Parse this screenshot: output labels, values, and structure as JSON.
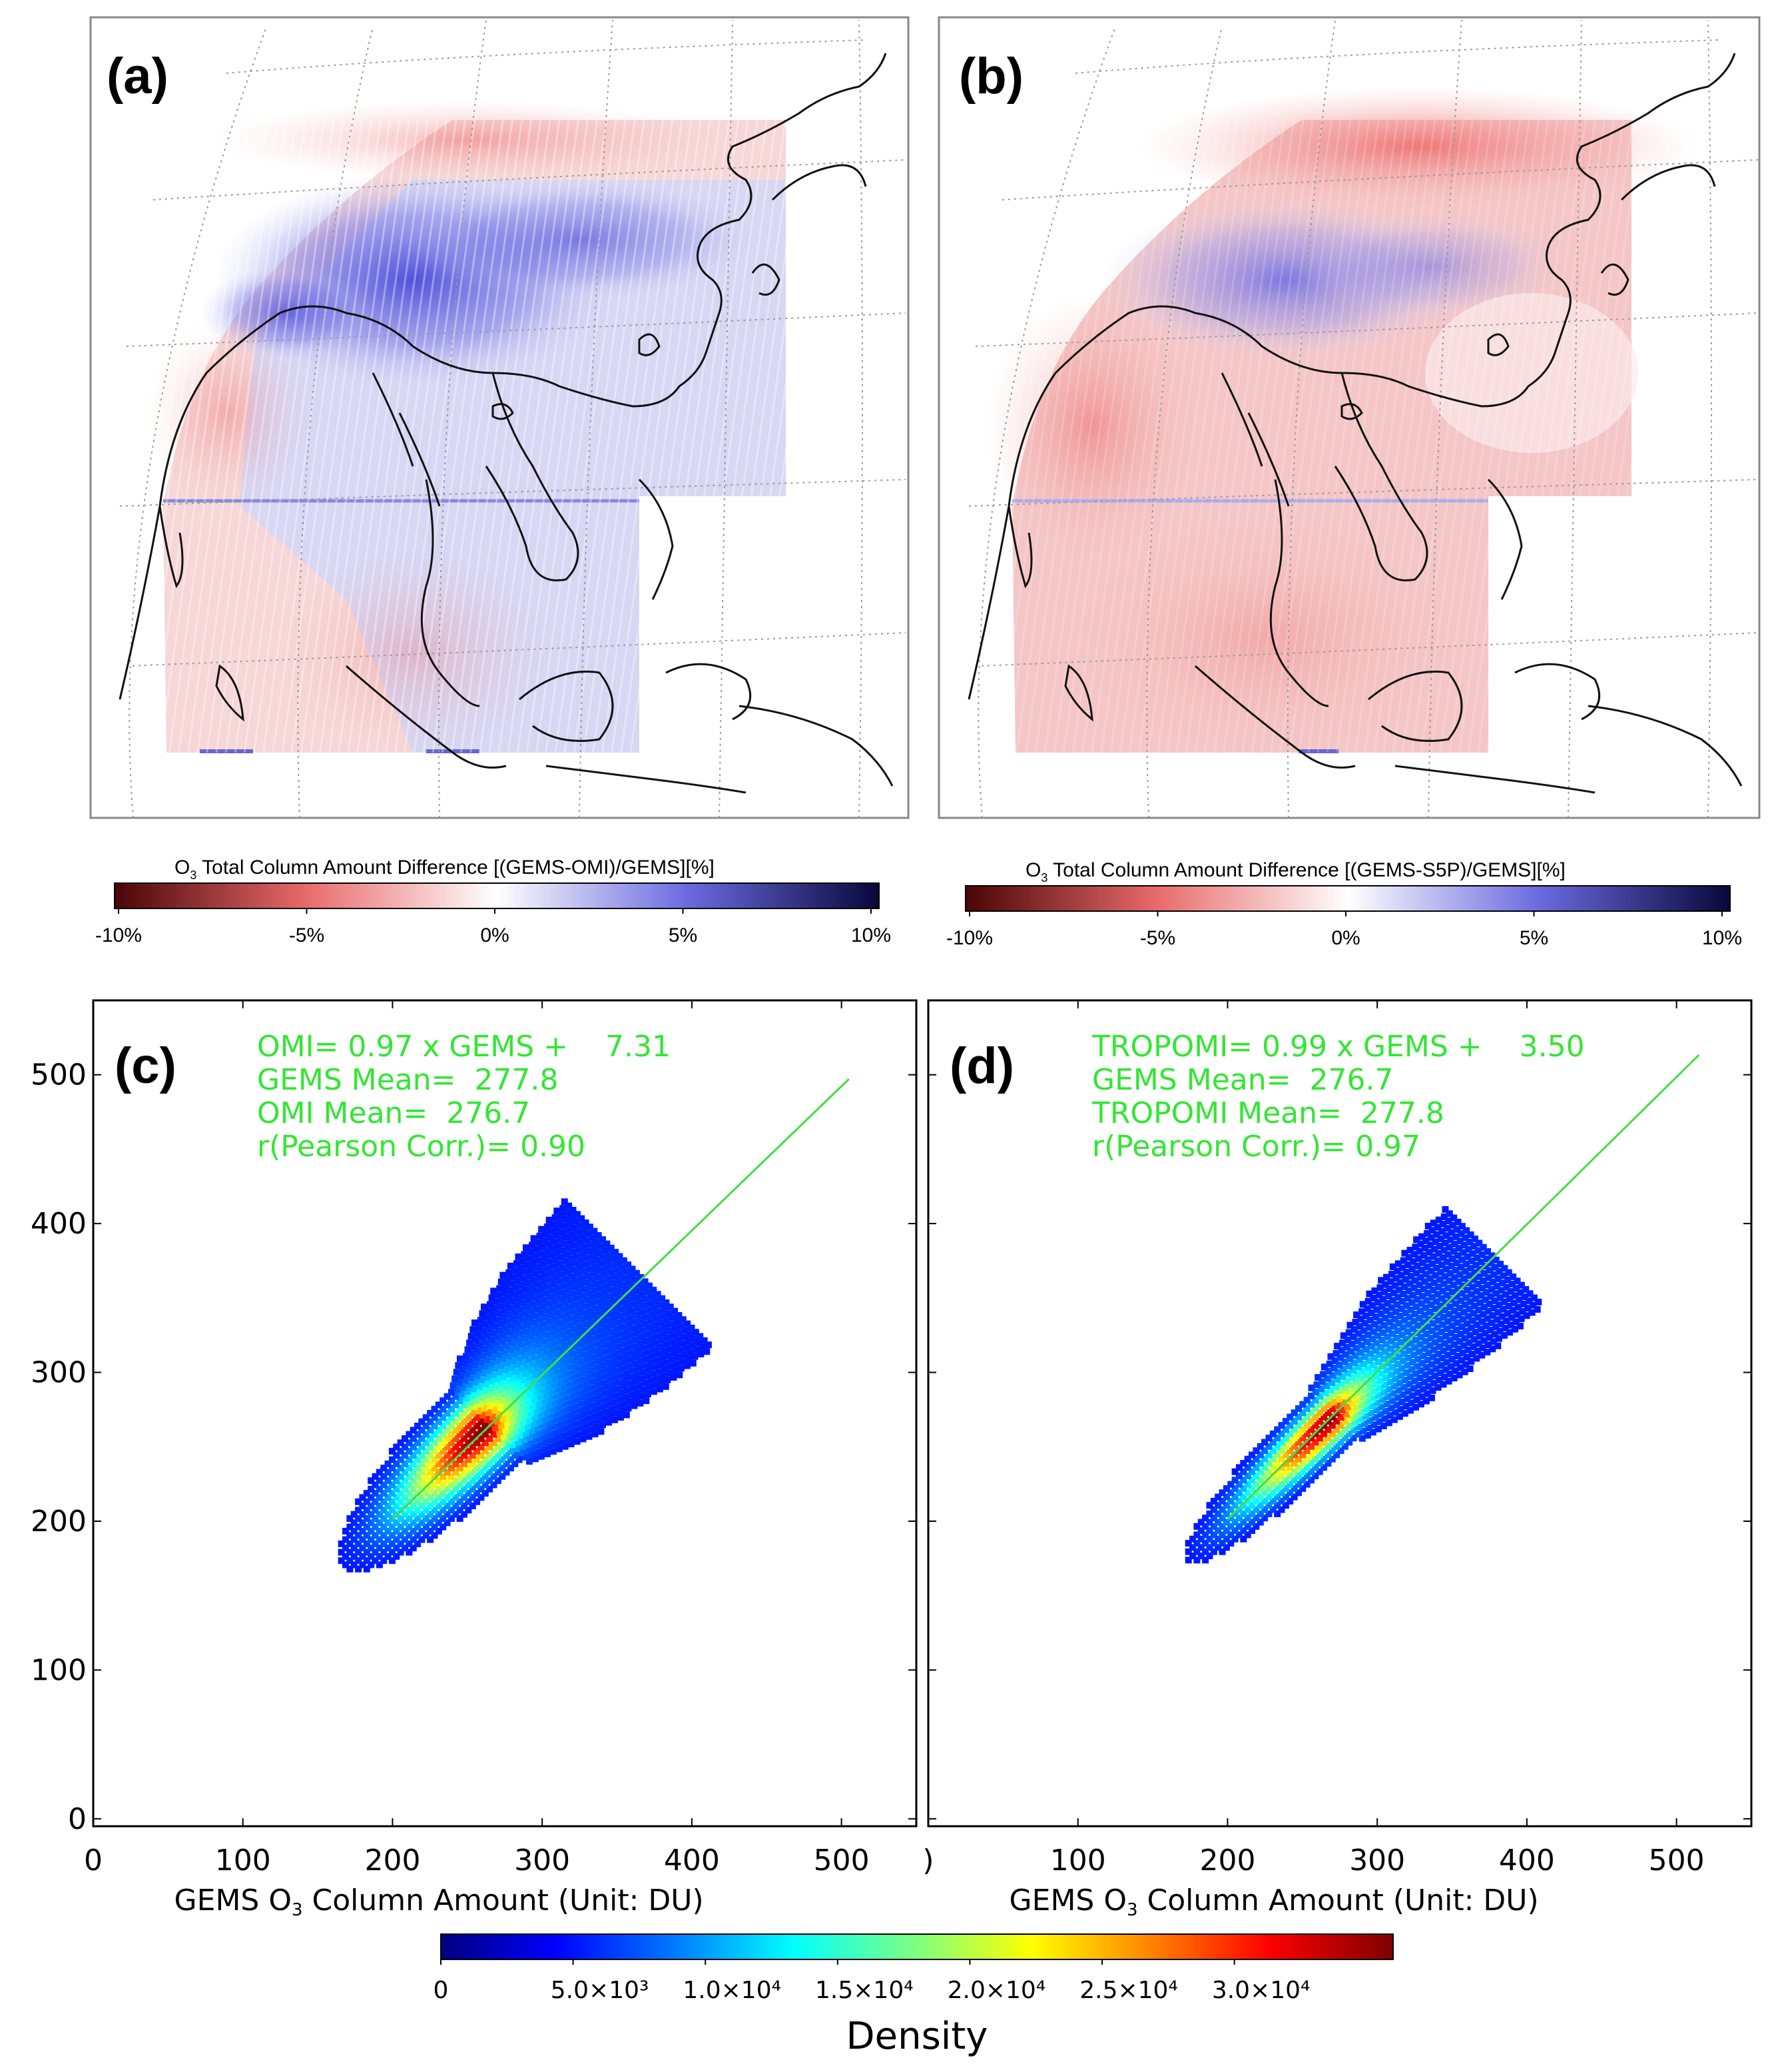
{
  "colors": {
    "map_bg": "#ffffff",
    "coast": "#111111",
    "annot": "#33e633",
    "fit_line": "#44dd44",
    "neg_dark": "#5a0c0c",
    "neg_mid": "#e86a6a",
    "neutral": "#ffffff",
    "pos_mid": "#6a6ae0",
    "pos_dark": "#0c0c40"
  },
  "maps": [
    {
      "label": "(a)",
      "colorbar_title_prefix": "O",
      "colorbar_title_sub": "3",
      "colorbar_title_rest": " Total Column Amount Difference [(GEMS-OMI)/GEMS][%]",
      "ticks": [
        "-10%",
        "-5%",
        "0%",
        "5%",
        "10%"
      ]
    },
    {
      "label": "(b)",
      "colorbar_title_prefix": "O",
      "colorbar_title_sub": "3",
      "colorbar_title_rest": " Total Column Amount Difference [(GEMS-S5P)/GEMS][%]",
      "ticks": [
        "-10%",
        "-5%",
        "0%",
        "5%",
        "10%"
      ]
    }
  ],
  "chart_data": [
    {
      "type": "scatter",
      "panel": "(c)",
      "subtype": "density scatter",
      "title": "",
      "xlabel_prefix": "GEMS O",
      "xlabel_sub": "3",
      "xlabel_rest": " Column Amount (Unit: DU)",
      "ylabel": "",
      "x_ticks": [
        "0",
        "100",
        "200",
        "300",
        "400",
        "500"
      ],
      "y_ticks": [
        "0",
        "100",
        "200",
        "300",
        "400",
        "500"
      ],
      "xlim": [
        0,
        550
      ],
      "ylim": [
        -5,
        550
      ],
      "fit": {
        "slope": 0.97,
        "intercept": 7.31,
        "x_range": [
          200,
          505
        ]
      },
      "density_center": [
        262,
        264
      ],
      "density_spread_along": 40,
      "density_spread_across": 12,
      "annotations": [
        "OMI= 0.97 x GEMS +    7.31",
        "GEMS Mean=  277.8",
        "OMI Mean=  276.7",
        "r(Pearson Corr.)= 0.90"
      ],
      "stats": {
        "gems_mean": 277.8,
        "ref_mean": 276.7,
        "pearson_r": 0.9
      }
    },
    {
      "type": "scatter",
      "panel": "(d)",
      "subtype": "density scatter",
      "title": "",
      "xlabel_prefix": "GEMS O",
      "xlabel_sub": "3",
      "xlabel_rest": " Column Amount (Unit: DU)",
      "ylabel": "",
      "x_ticks": [
        ")",
        "100",
        "200",
        "300",
        "400",
        "500"
      ],
      "y_ticks": [],
      "xlim": [
        0,
        550
      ],
      "ylim": [
        -5,
        550
      ],
      "fit": {
        "slope": 0.99,
        "intercept": 3.5,
        "x_range": [
          200,
          515
        ]
      },
      "density_center": [
        272,
        272
      ],
      "density_spread_along": 42,
      "density_spread_across": 8,
      "annotations": [
        "TROPOMI= 0.99 x GEMS +    3.50",
        "GEMS Mean=  276.7",
        "TROPOMI Mean=  277.8",
        "r(Pearson Corr.)= 0.97"
      ],
      "stats": {
        "gems_mean": 276.7,
        "ref_mean": 277.8,
        "pearson_r": 0.97
      }
    }
  ],
  "density_colorbar": {
    "title": "Density",
    "ticks": [
      "0",
      "5.0×10³",
      "1.0×10⁴",
      "1.5×10⁴",
      "2.0×10⁴",
      "2.5×10⁴",
      "3.0×10⁴"
    ],
    "colors": [
      "#00007f",
      "#0000ff",
      "#007fff",
      "#00ffff",
      "#7fff7f",
      "#ffff00",
      "#ff7f00",
      "#ff0000",
      "#7f0000"
    ]
  }
}
